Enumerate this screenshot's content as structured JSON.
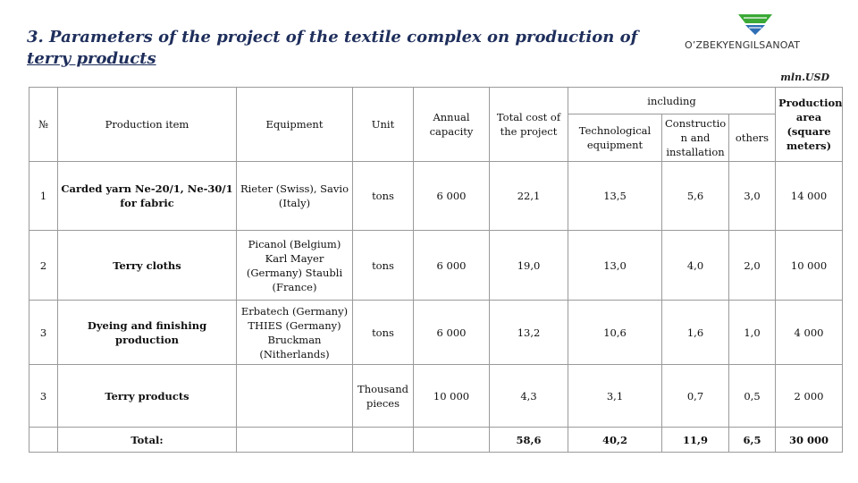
{
  "header": {
    "title_line1": "3. Parameters of the project of the textile complex on production of",
    "title_line2": "terry products",
    "brand": "O’ZBEKYENGILSANOAT",
    "unit_note": "mln.USD"
  },
  "table": {
    "headers": {
      "no": "№",
      "item": "Production item",
      "equipment": "Equipment",
      "unit": "Unit",
      "capacity": "Annual capacity",
      "total_cost": "Total cost of the project",
      "including": "including",
      "tech": "Technological equipment",
      "construction": "Constructio n and installation",
      "others": "others",
      "area": "Production area (square meters)"
    },
    "rows": [
      {
        "no": "1",
        "item": "Carded yarn Ne-20/1, Ne-30/1 for fabric",
        "equipment": "Rieter (Swiss), Savio (Italy)",
        "unit": "tons",
        "capacity": "6 000",
        "total": "22,1",
        "tech": "13,5",
        "construction": "5,6",
        "others": "3,0",
        "area": "14 000"
      },
      {
        "no": "2",
        "item": "Terry cloths",
        "equipment": "Picanol (Belgium) Karl Mayer (Germany) Staubli (France)",
        "unit": "tons",
        "capacity": "6 000",
        "total": "19,0",
        "tech": "13,0",
        "construction": "4,0",
        "others": "2,0",
        "area": "10 000"
      },
      {
        "no": "3",
        "item": "Dyeing and finishing production",
        "equipment": "Erbatech (Germany) THIES (Germany) Bruckman (Nitherlands)",
        "unit": "tons",
        "capacity": "6 000",
        "total": "13,2",
        "tech": "10,6",
        "construction": "1,6",
        "others": "1,0",
        "area": "4 000"
      },
      {
        "no": "3",
        "item": "Terry products",
        "equipment": "",
        "unit": "Thousand pieces",
        "capacity": "10 000",
        "total": "4,3",
        "tech": "3,1",
        "construction": "0,7",
        "others": "0,5",
        "area": "2 000"
      }
    ],
    "total": {
      "label": "Total:",
      "total": "58,6",
      "tech": "40,2",
      "construction": "11,9",
      "others": "6,5",
      "area": "30 000"
    }
  },
  "colors": {
    "title": "#1f2f5c",
    "logo_green": "#3aa935",
    "logo_blue": "#2e6fb5",
    "border": "#9a9a9a"
  }
}
